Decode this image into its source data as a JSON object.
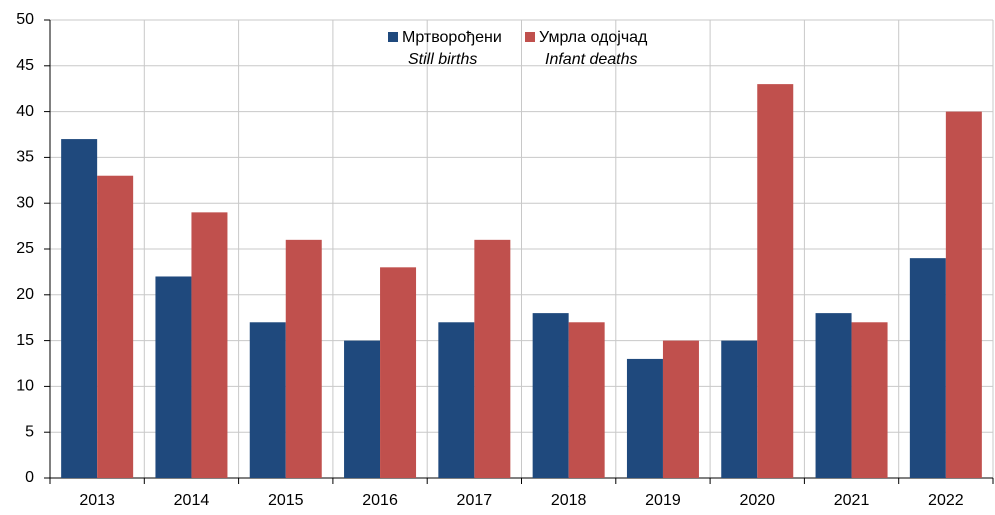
{
  "chart_data": {
    "type": "bar",
    "categories": [
      "2013",
      "2014",
      "2015",
      "2016",
      "2017",
      "2018",
      "2019",
      "2020",
      "2021",
      "2022"
    ],
    "series": [
      {
        "name": "Мртворођени",
        "name_en": "Still births",
        "color": "#1f497d",
        "values": [
          37,
          22,
          17,
          15,
          17,
          18,
          13,
          15,
          18,
          24
        ]
      },
      {
        "name": "Умрла одојчад",
        "name_en": "Infant deaths",
        "color": "#c0504d",
        "values": [
          33,
          29,
          26,
          23,
          26,
          17,
          15,
          43,
          17,
          40
        ]
      }
    ],
    "ylim": [
      0,
      50
    ],
    "yticks": [
      0,
      5,
      10,
      15,
      20,
      25,
      30,
      35,
      40,
      45,
      50
    ],
    "grid": true,
    "legend": "top"
  }
}
